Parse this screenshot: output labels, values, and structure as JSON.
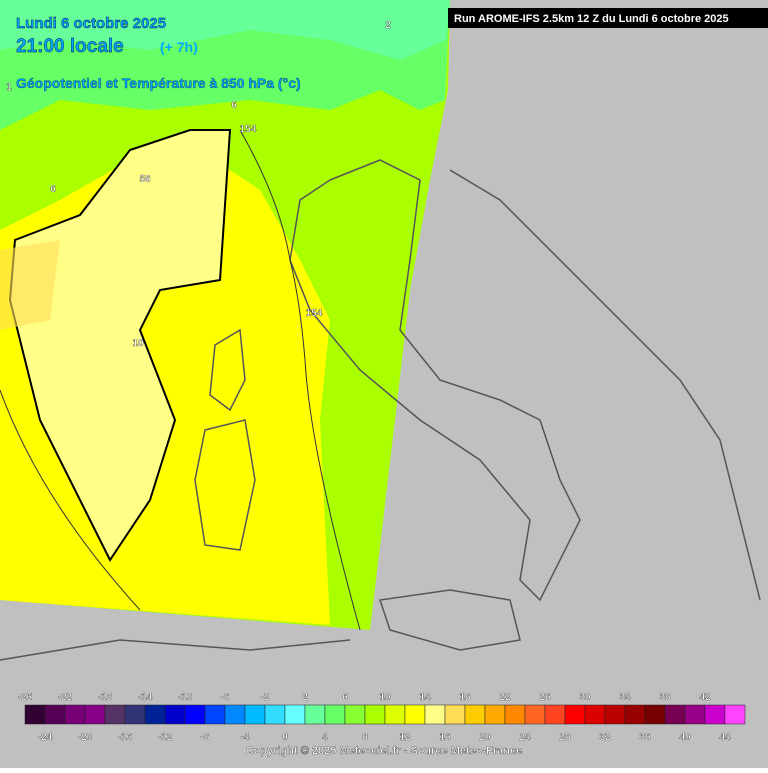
{
  "header": {
    "date": "Lundi 6 octobre 2025",
    "time": "21:00 locale",
    "offset": "(+ 7h)",
    "field": "Géopotentiel et Température à 850 hPa (°c)",
    "run": "Run AROME-IFS 2.5km 12 Z du Lundi 6 octobre 2025"
  },
  "contour_labels": [
    "2",
    "6",
    "154",
    "56",
    "6",
    "10",
    "154",
    "1"
  ],
  "legend": {
    "top_labels": [
      -26,
      -22,
      -18,
      -14,
      -10,
      -6,
      -2,
      2,
      6,
      10,
      14,
      18,
      22,
      26,
      30,
      34,
      38,
      42
    ],
    "bottom_labels": [
      -24,
      -20,
      -16,
      -12,
      -8,
      -4,
      0,
      4,
      8,
      12,
      16,
      20,
      24,
      28,
      32,
      36,
      40,
      44
    ]
  },
  "footer": {
    "copyright": "Copyright © 2025 Meteociel.fr - Source Meteo-France"
  }
}
